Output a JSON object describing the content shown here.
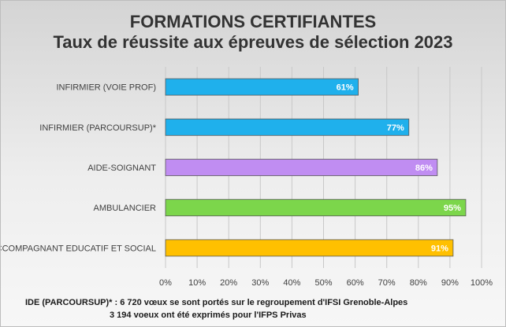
{
  "chart_data": {
    "type": "bar",
    "orientation": "horizontal",
    "title": "FORMATIONS CERTIFIANTES",
    "subtitle": "Taux de réussite aux épreuves de sélection 2023",
    "categories": [
      "INFIRMIER (VOIE PROF)",
      "INFIRMIER (PARCOURSUP)*",
      "AIDE-SOIGNANT",
      "AMBULANCIER",
      "ACCOMPAGNANT EDUCATIF ET SOCIAL"
    ],
    "values": [
      61,
      77,
      86,
      95,
      91
    ],
    "value_labels": [
      "61%",
      "77%",
      "86%",
      "95%",
      "91%"
    ],
    "colors": [
      "#1fb0ec",
      "#1fb0ec",
      "#c08df2",
      "#7cd64b",
      "#ffc000"
    ],
    "xlim": [
      0,
      100
    ],
    "xticks": [
      "0%",
      "10%",
      "20%",
      "30%",
      "40%",
      "50%",
      "60%",
      "70%",
      "80%",
      "90%",
      "100%"
    ],
    "grid": true,
    "legend": "none"
  },
  "footnote": {
    "line1": "IDE (PARCOURSUP)* : 6 720 vœux se sont portés sur le regroupement d'IFSI Grenoble-Alpes",
    "line2": "3 194 voeux ont été exprimés pour l'IFPS Privas"
  }
}
